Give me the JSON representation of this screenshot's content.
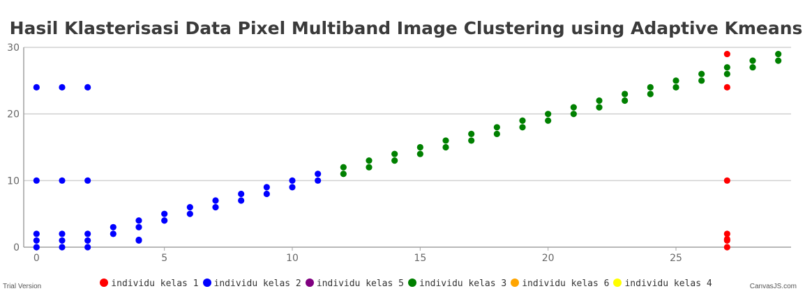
{
  "chart_data": {
    "type": "scatter",
    "title": "Hasil Klasterisasi Data Pixel Multiband Image Clustering using Adaptive Kmeans",
    "xlabel": "",
    "ylabel": "",
    "xlim": [
      -0.5,
      29.5
    ],
    "ylim": [
      0,
      30
    ],
    "x_ticks": [
      0,
      5,
      10,
      15,
      20,
      25
    ],
    "y_ticks": [
      0,
      10,
      20,
      30
    ],
    "grid": "horizontal",
    "legend_position": "bottom",
    "series": [
      {
        "name": "individu kelas 1",
        "color": "#ff0000",
        "points": [
          [
            27,
            29
          ],
          [
            27,
            24
          ],
          [
            27,
            10
          ],
          [
            27,
            2
          ],
          [
            27,
            1.2
          ],
          [
            27,
            1
          ],
          [
            27,
            0
          ]
        ]
      },
      {
        "name": "individu kelas 2",
        "color": "#0000ff",
        "points": [
          [
            0,
            24
          ],
          [
            1,
            24
          ],
          [
            2,
            24
          ],
          [
            0,
            10
          ],
          [
            1,
            10
          ],
          [
            2,
            10
          ],
          [
            0,
            2
          ],
          [
            0,
            1
          ],
          [
            0,
            0
          ],
          [
            1,
            2
          ],
          [
            1,
            1
          ],
          [
            1,
            0
          ],
          [
            2,
            2
          ],
          [
            2,
            1
          ],
          [
            2,
            0
          ],
          [
            3,
            3
          ],
          [
            3,
            2
          ],
          [
            4,
            4
          ],
          [
            4,
            3
          ],
          [
            4,
            1.1
          ],
          [
            4,
            1
          ],
          [
            5,
            5
          ],
          [
            5,
            4
          ],
          [
            6,
            6
          ],
          [
            6,
            5
          ],
          [
            7,
            7
          ],
          [
            7,
            6
          ],
          [
            8,
            8
          ],
          [
            8,
            7
          ],
          [
            9,
            9
          ],
          [
            9,
            8
          ],
          [
            10,
            10
          ],
          [
            10,
            9
          ],
          [
            11,
            11
          ],
          [
            11,
            10
          ]
        ]
      },
      {
        "name": "individu kelas 5",
        "color": "#800080",
        "points": []
      },
      {
        "name": "individu kelas 3",
        "color": "#008000",
        "points": [
          [
            12,
            12
          ],
          [
            12,
            11
          ],
          [
            13,
            13
          ],
          [
            13,
            12
          ],
          [
            14,
            14
          ],
          [
            14,
            13
          ],
          [
            15,
            15
          ],
          [
            15,
            14
          ],
          [
            16,
            16
          ],
          [
            16,
            15
          ],
          [
            17,
            17
          ],
          [
            17,
            16
          ],
          [
            18,
            18
          ],
          [
            18,
            17
          ],
          [
            19,
            19
          ],
          [
            19,
            18
          ],
          [
            20,
            20
          ],
          [
            20,
            19
          ],
          [
            21,
            21
          ],
          [
            21,
            20
          ],
          [
            22,
            22
          ],
          [
            22,
            21
          ],
          [
            23,
            23
          ],
          [
            23,
            22
          ],
          [
            24,
            24
          ],
          [
            24,
            23
          ],
          [
            25,
            25
          ],
          [
            25,
            24
          ],
          [
            26,
            26
          ],
          [
            26,
            25
          ],
          [
            27,
            27
          ],
          [
            27,
            26
          ],
          [
            28,
            28
          ],
          [
            28,
            27
          ],
          [
            29,
            29
          ],
          [
            29,
            28
          ]
        ]
      },
      {
        "name": "individu kelas 6",
        "color": "#ffa500",
        "points": []
      },
      {
        "name": "individu kelas 4",
        "color": "#ffff00",
        "points": []
      }
    ]
  },
  "footer": {
    "trial_text": "Trial Version",
    "credit_text": "CanvasJS.com"
  }
}
